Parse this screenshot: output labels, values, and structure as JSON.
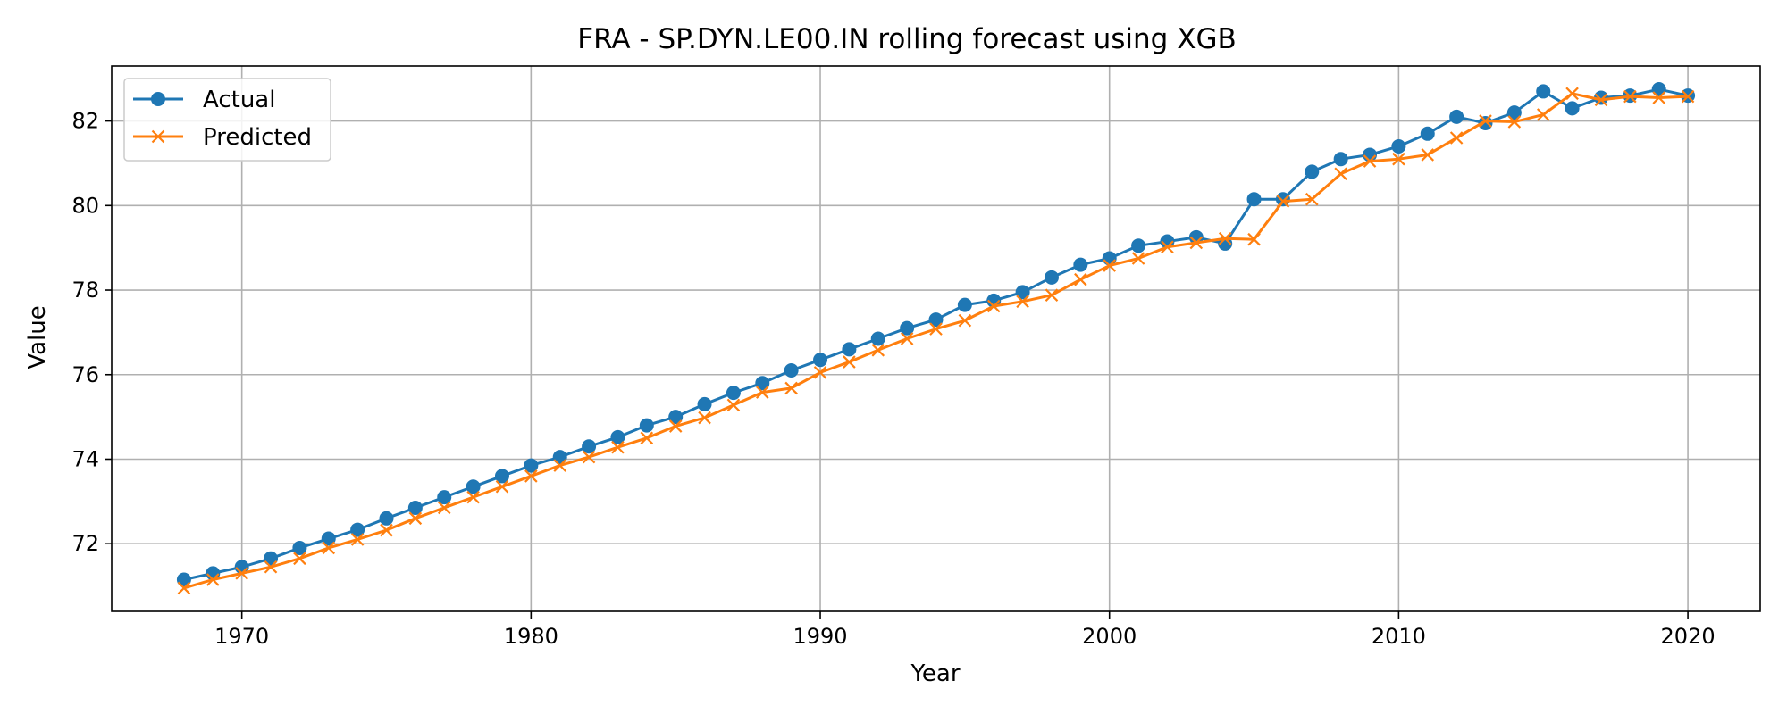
{
  "chart_data": {
    "type": "line",
    "title": "FRA - SP.DYN.LE00.IN rolling forecast using XGB",
    "xlabel": "Year",
    "ylabel": "Value",
    "xlim": [
      1965.5,
      2022.5
    ],
    "ylim": [
      70.4,
      83.3
    ],
    "xticks": [
      1970,
      1980,
      1990,
      2000,
      2010,
      2020
    ],
    "yticks": [
      72,
      74,
      76,
      78,
      80,
      82
    ],
    "grid": true,
    "legend_position": "top-left",
    "x": [
      1968,
      1969,
      1970,
      1971,
      1972,
      1973,
      1974,
      1975,
      1976,
      1977,
      1978,
      1979,
      1980,
      1981,
      1982,
      1983,
      1984,
      1985,
      1986,
      1987,
      1988,
      1989,
      1990,
      1991,
      1992,
      1993,
      1994,
      1995,
      1996,
      1997,
      1998,
      1999,
      2000,
      2001,
      2002,
      2003,
      2004,
      2005,
      2006,
      2007,
      2008,
      2009,
      2010,
      2011,
      2012,
      2013,
      2014,
      2015,
      2016,
      2017,
      2018,
      2019,
      2020
    ],
    "series": [
      {
        "name": "Actual",
        "color": "#1f77b4",
        "marker": "circle",
        "values": [
          71.15,
          71.3,
          71.45,
          71.65,
          71.9,
          72.12,
          72.33,
          72.6,
          72.85,
          73.1,
          73.35,
          73.6,
          73.85,
          74.05,
          74.3,
          74.52,
          74.8,
          75.0,
          75.3,
          75.57,
          75.8,
          76.1,
          76.35,
          76.6,
          76.85,
          77.1,
          77.3,
          77.65,
          77.75,
          77.95,
          78.3,
          78.6,
          78.75,
          79.05,
          79.15,
          79.25,
          79.1,
          80.15,
          80.15,
          80.8,
          81.1,
          81.2,
          81.4,
          81.7,
          82.1,
          81.95,
          82.2,
          82.7,
          82.3,
          82.55,
          82.6,
          82.75,
          82.6
        ]
      },
      {
        "name": "Predicted",
        "color": "#ff7f0e",
        "marker": "x",
        "values": [
          70.95,
          71.15,
          71.3,
          71.45,
          71.65,
          71.9,
          72.1,
          72.32,
          72.6,
          72.85,
          73.1,
          73.35,
          73.6,
          73.85,
          74.05,
          74.28,
          74.5,
          74.78,
          74.98,
          75.28,
          75.58,
          75.68,
          76.05,
          76.3,
          76.58,
          76.85,
          77.08,
          77.28,
          77.62,
          77.73,
          77.88,
          78.25,
          78.58,
          78.75,
          79.02,
          79.12,
          79.22,
          79.2,
          80.1,
          80.15,
          80.75,
          81.05,
          81.1,
          81.2,
          81.6,
          82.0,
          81.98,
          82.15,
          82.65,
          82.5,
          82.58,
          82.55,
          82.58
        ]
      }
    ]
  }
}
